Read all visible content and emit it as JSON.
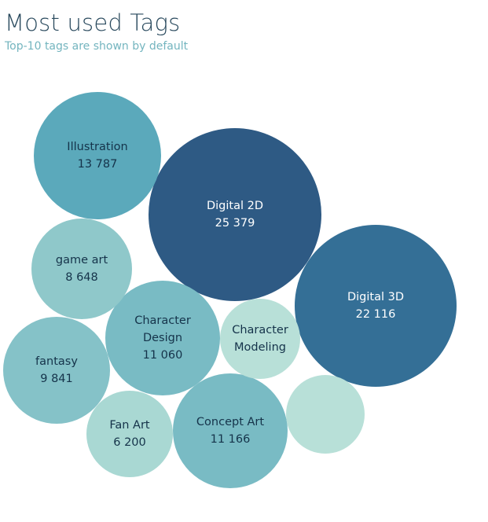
{
  "header": {
    "title": "Most used Tags",
    "subtitle": "Top-10 tags are shown by default"
  },
  "chart_data": {
    "type": "bubble",
    "title": "Most used Tags",
    "subtitle": "Top-10 tags are shown by default",
    "value_label_format": "thousands separated by a space",
    "colors": {
      "dark": "#2e5a84",
      "dark_mid": "#346f96",
      "mid": "#5ba9bb",
      "light_mid": "#7dbdc6",
      "light": "#a7d6d3",
      "lightest": "#b8e0d8",
      "text_dark": "#15334a",
      "text_light": "#ffffff"
    },
    "series": [
      {
        "name": "Digital 2D",
        "value": 25379,
        "value_label": "25 379",
        "color": "#2e5a84",
        "label_color": "#ffffff"
      },
      {
        "name": "Digital 3D",
        "value": 22116,
        "value_label": "22 116",
        "color": "#346f96",
        "label_color": "#ffffff"
      },
      {
        "name": "Illustration",
        "value": 13787,
        "value_label": "13 787",
        "color": "#5ba9bb",
        "label_color": "#15334a"
      },
      {
        "name": "Concept Art",
        "value": 11166,
        "value_label": "11 166",
        "color": "#79bbc4",
        "label_color": "#15334a"
      },
      {
        "name": "Character Design",
        "value": 11060,
        "value_label": "11 060",
        "color": "#79bbc4",
        "label_color": "#15334a"
      },
      {
        "name": "fantasy",
        "value": 9841,
        "value_label": "9 841",
        "color": "#85c2c8",
        "label_color": "#15334a"
      },
      {
        "name": "game art",
        "value": 8648,
        "value_label": "8 648",
        "color": "#8fc8ca",
        "label_color": "#15334a"
      },
      {
        "name": "Fan Art",
        "value": 6200,
        "value_label": "6 200",
        "color": "#a9d8d3",
        "label_color": "#15334a"
      },
      {
        "name": "Character Modeling",
        "value": null,
        "value_label": "",
        "color": "#b8e0d8",
        "label_color": "#15334a"
      },
      {
        "name": "",
        "value": null,
        "value_label": "",
        "color": "#b8e0d8",
        "label_color": "#15334a"
      }
    ]
  }
}
